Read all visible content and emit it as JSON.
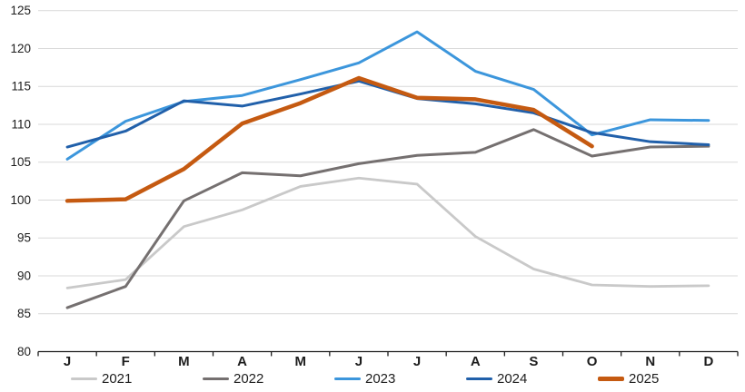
{
  "chart_data": {
    "type": "line",
    "title": "",
    "xlabel": "",
    "ylabel": "",
    "categories": [
      "J",
      "F",
      "M",
      "A",
      "M",
      "J",
      "J",
      "A",
      "S",
      "O",
      "N",
      "D"
    ],
    "y_ticks": [
      80,
      85,
      90,
      95,
      100,
      105,
      110,
      115,
      120,
      125
    ],
    "ylim": [
      80,
      125
    ],
    "grid": "horizontal",
    "legend_position": "bottom",
    "series": [
      {
        "name": "2021",
        "color": "#c9c9c9",
        "line_width": 2.8,
        "values": [
          88.4,
          89.5,
          96.5,
          98.7,
          101.8,
          102.9,
          102.1,
          95.2,
          90.9,
          88.8,
          88.6,
          88.7
        ]
      },
      {
        "name": "2022",
        "color": "#757070",
        "line_width": 3,
        "values": [
          85.8,
          88.6,
          99.9,
          103.6,
          103.2,
          104.8,
          105.9,
          106.3,
          109.3,
          105.8,
          107.0,
          107.1
        ]
      },
      {
        "name": "2023",
        "color": "#3c96dc",
        "line_width": 3,
        "values": [
          105.4,
          110.4,
          113.0,
          113.8,
          115.9,
          118.1,
          122.2,
          117.0,
          114.6,
          108.6,
          110.6,
          110.5
        ]
      },
      {
        "name": "2024",
        "color": "#2160aa",
        "line_width": 3,
        "values": [
          107.0,
          109.1,
          113.1,
          112.4,
          114.0,
          115.7,
          113.4,
          112.7,
          111.5,
          108.9,
          107.7,
          107.3
        ]
      },
      {
        "name": "2025",
        "color": "#c55a11",
        "line_width": 4.5,
        "values": [
          99.9,
          100.1,
          104.1,
          110.1,
          112.8,
          116.1,
          113.5,
          113.3,
          111.9,
          107.1
        ]
      }
    ],
    "colors": {
      "gridline": "#d9d9d9",
      "axis": "#1d1d1d",
      "text": "#1d1d1d",
      "background": "#ffffff"
    }
  }
}
